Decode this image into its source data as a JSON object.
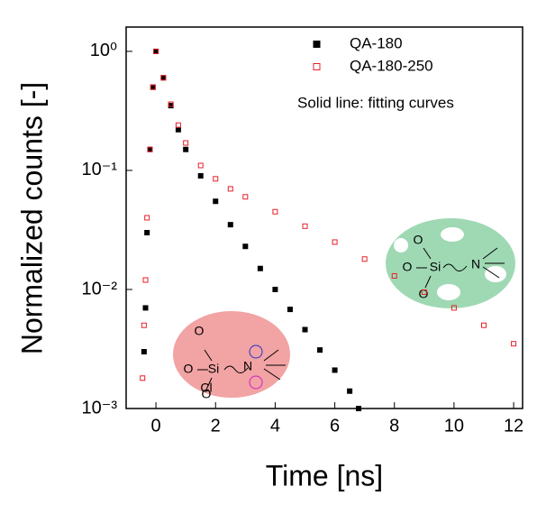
{
  "chart_data": {
    "type": "scatter",
    "xlabel": "Time [ns]",
    "ylabel": "Normalized counts [-]",
    "annotation": "Solid line: fitting curves",
    "xlim": [
      -1,
      12.3
    ],
    "xticks": [
      0,
      2,
      4,
      6,
      8,
      10,
      12
    ],
    "ylim": [
      0.001,
      1.6
    ],
    "log_y": true,
    "yticks": [
      {
        "value": 1,
        "label": "10⁰"
      },
      {
        "value": 0.1,
        "label": "10⁻¹"
      },
      {
        "value": 0.01,
        "label": "10⁻²"
      },
      {
        "value": 0.001,
        "label": "10⁻³"
      }
    ],
    "series": [
      {
        "name": "QA-180",
        "color": "#000000",
        "marker": "filled-square",
        "x": [
          -0.4,
          -0.35,
          -0.3,
          -0.2,
          -0.1,
          0,
          0.25,
          0.5,
          0.75,
          1,
          1.5,
          2,
          2.5,
          3,
          3.5,
          4,
          4.5,
          5,
          5.5,
          6,
          6.5,
          6.8
        ],
        "values": [
          0.003,
          0.007,
          0.03,
          0.15,
          0.5,
          1,
          0.6,
          0.35,
          0.22,
          0.15,
          0.09,
          0.055,
          0.035,
          0.023,
          0.015,
          0.01,
          0.0068,
          0.0046,
          0.0031,
          0.0021,
          0.0014,
          0.001
        ]
      },
      {
        "name": "QA-180-250",
        "color": "#e8202a",
        "marker": "open-square",
        "x": [
          -0.45,
          -0.4,
          -0.35,
          -0.3,
          -0.2,
          -0.1,
          0,
          0.25,
          0.5,
          0.75,
          1,
          1.5,
          2,
          2.5,
          3,
          4,
          5,
          6,
          7,
          8,
          9,
          10,
          11,
          12
        ],
        "values": [
          0.0018,
          0.005,
          0.012,
          0.04,
          0.15,
          0.5,
          1,
          0.6,
          0.36,
          0.24,
          0.17,
          0.11,
          0.085,
          0.07,
          0.06,
          0.045,
          0.034,
          0.025,
          0.018,
          0.013,
          0.0095,
          0.007,
          0.005,
          0.0035
        ]
      }
    ],
    "insets": [
      {
        "color": "#9fd9b4",
        "texts": [
          "O",
          "O",
          "Si",
          "N",
          "O"
        ]
      },
      {
        "color": "#f2a3a3",
        "texts": [
          "O",
          "O",
          "Si",
          "N",
          "O",
          "Cl"
        ]
      }
    ]
  }
}
